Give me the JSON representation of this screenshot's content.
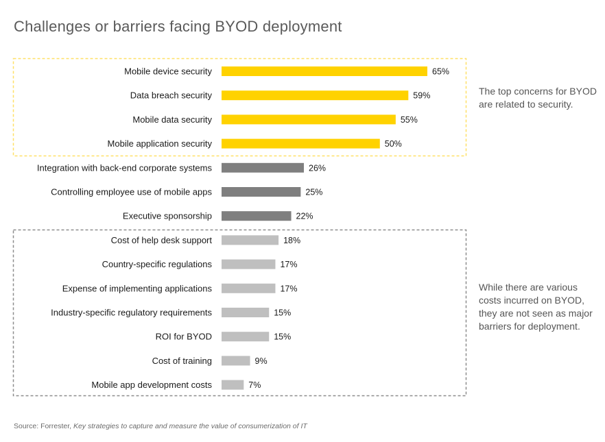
{
  "title": "Challenges or barriers facing BYOD deployment",
  "notes": {
    "top_concerns": "The top concerns for BYOD are related to security.",
    "costs": "While there are various costs incurred on BYOD, they are not seen as major barriers for deployment."
  },
  "source": {
    "prefix": "Source: Forrester,",
    "report": "Key strategies to capture and measure the value of consumerization of IT"
  },
  "colors": {
    "security": "#FFD200",
    "other": "#7F7F7F",
    "cost": "#BFBFBF",
    "security_box": "#FFE066",
    "cost_box": "#8C8C8C"
  },
  "chart_data": {
    "type": "bar",
    "orientation": "horizontal",
    "title": "Challenges or barriers facing BYOD deployment",
    "xlabel": "",
    "ylabel": "",
    "unit": "%",
    "categories": [
      "Mobile device security",
      "Data breach security",
      "Mobile data security",
      "Mobile application security",
      "Integration with back-end corporate systems",
      "Controlling employee use of mobile apps",
      "Executive sponsorship",
      "Cost of help desk support",
      "Country-specific regulations",
      "Expense of implementing applications",
      "Industry-specific regulatory requirements",
      "ROI for BYOD",
      "Cost of training",
      "Mobile app development costs"
    ],
    "values": [
      65,
      59,
      55,
      50,
      26,
      25,
      22,
      18,
      17,
      17,
      15,
      15,
      9,
      7
    ],
    "groups": [
      "security",
      "security",
      "security",
      "security",
      "other",
      "other",
      "other",
      "cost",
      "cost",
      "cost",
      "cost",
      "cost",
      "cost",
      "cost"
    ],
    "grid": false,
    "legend": "none"
  }
}
